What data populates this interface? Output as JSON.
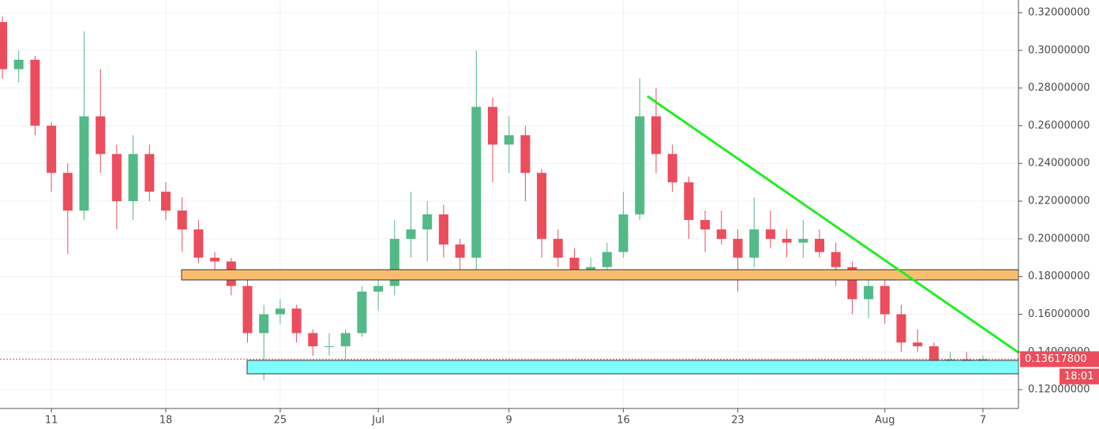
{
  "chart_data": {
    "type": "candlestick",
    "categories": [
      null,
      null,
      null,
      "11",
      null,
      null,
      null,
      null,
      null,
      null,
      "18",
      null,
      null,
      null,
      null,
      null,
      null,
      "25",
      null,
      null,
      null,
      null,
      null,
      "Jul",
      null,
      null,
      null,
      null,
      null,
      null,
      null,
      "9",
      null,
      null,
      null,
      null,
      null,
      null,
      "16",
      null,
      null,
      null,
      null,
      null,
      null,
      "23",
      null,
      null,
      null,
      null,
      null,
      null,
      null,
      null,
      "Aug",
      null,
      null,
      null,
      null,
      null,
      "7"
    ],
    "open": [
      0.315,
      0.29,
      0.295,
      0.26,
      0.235,
      0.215,
      0.265,
      0.245,
      0.22,
      0.245,
      0.225,
      0.215,
      0.205,
      0.19,
      0.188,
      0.175,
      0.15,
      0.16,
      0.163,
      0.15,
      0.143,
      0.143,
      0.15,
      0.172,
      0.175,
      0.2,
      0.205,
      0.213,
      0.197,
      0.19,
      0.27,
      0.25,
      0.255,
      0.235,
      0.2,
      0.19,
      0.183,
      0.185,
      0.193,
      0.213,
      0.265,
      0.245,
      0.23,
      0.21,
      0.205,
      0.2,
      0.19,
      0.205,
      0.2,
      0.198,
      0.2,
      0.193,
      0.185,
      0.168,
      0.175,
      0.16,
      0.145,
      0.143,
      0.135,
      0.136,
      0.133
    ],
    "high": [
      0.318,
      0.3,
      0.297,
      0.262,
      0.24,
      0.31,
      0.29,
      0.25,
      0.255,
      0.25,
      0.23,
      0.222,
      0.21,
      0.193,
      0.19,
      0.178,
      0.165,
      0.168,
      0.165,
      0.152,
      0.15,
      0.152,
      0.175,
      0.178,
      0.21,
      0.225,
      0.22,
      0.218,
      0.2,
      0.3,
      0.275,
      0.265,
      0.26,
      0.237,
      0.205,
      0.195,
      0.19,
      0.198,
      0.225,
      0.285,
      0.28,
      0.25,
      0.233,
      0.215,
      0.215,
      0.205,
      0.222,
      0.215,
      0.205,
      0.21,
      0.205,
      0.198,
      0.188,
      0.18,
      0.18,
      0.165,
      0.152,
      0.145,
      0.14,
      0.14,
      0.138
    ],
    "low": [
      0.285,
      0.283,
      0.255,
      0.225,
      0.192,
      0.21,
      0.235,
      0.205,
      0.21,
      0.22,
      0.21,
      0.193,
      0.187,
      0.183,
      0.17,
      0.145,
      0.125,
      0.155,
      0.145,
      0.138,
      0.138,
      0.133,
      0.148,
      0.162,
      0.17,
      0.19,
      0.188,
      0.19,
      0.178,
      0.178,
      0.23,
      0.235,
      0.22,
      0.19,
      0.185,
      0.178,
      0.178,
      0.18,
      0.19,
      0.21,
      0.235,
      0.225,
      0.2,
      0.193,
      0.197,
      0.172,
      0.185,
      0.195,
      0.19,
      0.19,
      0.19,
      0.175,
      0.16,
      0.158,
      0.155,
      0.14,
      0.14,
      0.132,
      0.132,
      0.132,
      0.13
    ],
    "close": [
      0.29,
      0.295,
      0.26,
      0.235,
      0.215,
      0.265,
      0.245,
      0.22,
      0.245,
      0.225,
      0.215,
      0.205,
      0.19,
      0.188,
      0.175,
      0.15,
      0.16,
      0.163,
      0.15,
      0.143,
      0.143,
      0.15,
      0.172,
      0.175,
      0.2,
      0.205,
      0.213,
      0.197,
      0.19,
      0.27,
      0.25,
      0.255,
      0.235,
      0.2,
      0.19,
      0.183,
      0.185,
      0.193,
      0.213,
      0.265,
      0.245,
      0.23,
      0.21,
      0.205,
      0.2,
      0.19,
      0.205,
      0.2,
      0.198,
      0.2,
      0.193,
      0.185,
      0.168,
      0.175,
      0.16,
      0.145,
      0.143,
      0.135,
      0.136,
      0.133,
      0.136178
    ],
    "up_color": "#53b987",
    "down_color": "#eb4d5c",
    "ylim": [
      0.11,
      0.3267
    ],
    "yticks": [
      {
        "value": 0.12,
        "label": "0.12000000"
      },
      {
        "value": 0.14,
        "label": "0.14000000"
      },
      {
        "value": 0.16,
        "label": "0.16000000"
      },
      {
        "value": 0.18,
        "label": "0.18000000"
      },
      {
        "value": 0.2,
        "label": "0.20000000"
      },
      {
        "value": 0.22,
        "label": "0.22000000"
      },
      {
        "value": 0.24,
        "label": "0.24000000"
      },
      {
        "value": 0.26,
        "label": "0.26000000"
      },
      {
        "value": 0.28,
        "label": "0.28000000"
      },
      {
        "value": 0.3,
        "label": "0.30000000"
      },
      {
        "value": 0.32,
        "label": "0.32000000"
      }
    ],
    "grid": true,
    "last_price": {
      "value": 0.136178,
      "label": "0.13617800"
    },
    "countdown": "18:01"
  }
}
